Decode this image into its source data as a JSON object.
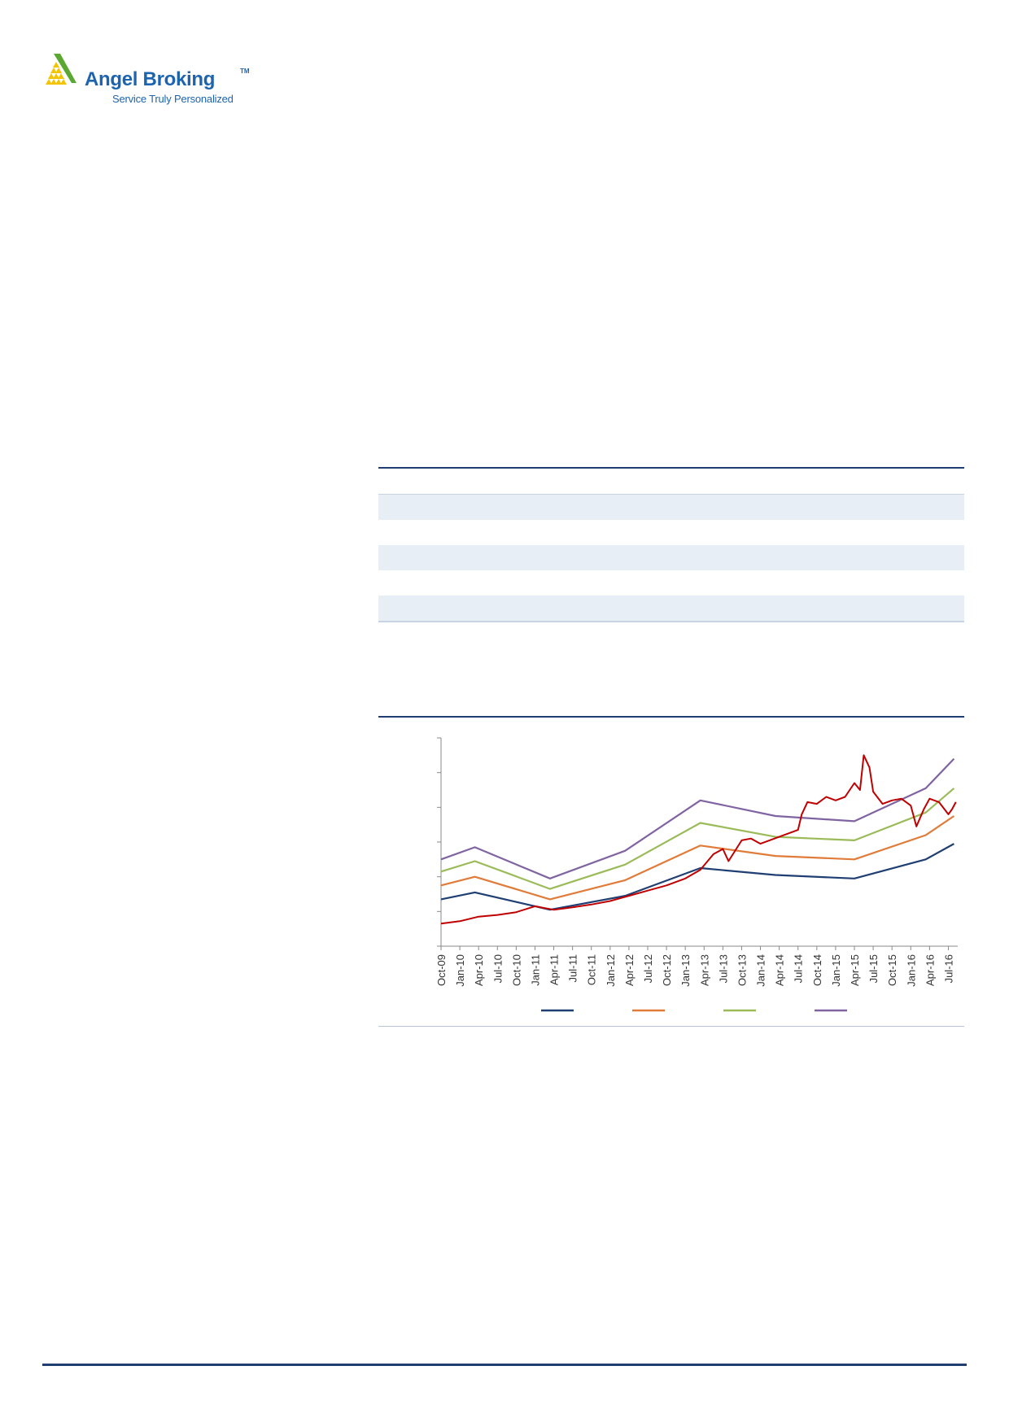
{
  "brand": {
    "name": "Angel Broking",
    "tm": "TM",
    "tagline": "Service Truly Personalized",
    "colors": {
      "primary": "#1c64b0",
      "mark": "#5aa832",
      "accent": "#f5c400"
    }
  },
  "colors": {
    "rule": "#1f3f73",
    "table_shade": "#e8eef6",
    "price": "#c00000",
    "band_1": "#1f3f73",
    "band_2": "#e07b39",
    "band_3": "#9bbb59",
    "band_4": "#8064a2"
  },
  "chart_data": {
    "type": "line",
    "x_tick_labels": [
      "Oct-09",
      "Jan-10",
      "Apr-10",
      "Jul-10",
      "Oct-10",
      "Jan-11",
      "Apr-11",
      "Jul-11",
      "Oct-11",
      "Jan-12",
      "Apr-12",
      "Jul-12",
      "Oct-12",
      "Jan-13",
      "Apr-13",
      "Jul-13",
      "Oct-13",
      "Jan-14",
      "Apr-14",
      "Jul-14",
      "Oct-14",
      "Jan-15",
      "Apr-15",
      "Jul-15",
      "Oct-15",
      "Jan-16",
      "Apr-16",
      "Jul-16"
    ],
    "x_range": [
      0,
      27.5
    ],
    "y_range": [
      0,
      6
    ],
    "y_ticks": 6,
    "grid": false,
    "legend_position": "bottom",
    "series": [
      {
        "key": "band_1",
        "values": [
          [
            0,
            1.35
          ],
          [
            1.8,
            1.55
          ],
          [
            5.8,
            1.05
          ],
          [
            9.8,
            1.45
          ],
          [
            13.8,
            2.25
          ],
          [
            17.8,
            2.05
          ],
          [
            22,
            1.95
          ],
          [
            25.8,
            2.5
          ],
          [
            27.3,
            2.95
          ]
        ]
      },
      {
        "key": "band_2",
        "values": [
          [
            0,
            1.75
          ],
          [
            1.8,
            2.0
          ],
          [
            5.8,
            1.35
          ],
          [
            9.8,
            1.9
          ],
          [
            13.8,
            2.9
          ],
          [
            17.8,
            2.6
          ],
          [
            22,
            2.5
          ],
          [
            25.8,
            3.2
          ],
          [
            27.3,
            3.75
          ]
        ]
      },
      {
        "key": "band_3",
        "values": [
          [
            0,
            2.15
          ],
          [
            1.8,
            2.45
          ],
          [
            5.8,
            1.65
          ],
          [
            9.8,
            2.35
          ],
          [
            13.8,
            3.55
          ],
          [
            17.8,
            3.15
          ],
          [
            22,
            3.05
          ],
          [
            25.8,
            3.85
          ],
          [
            27.3,
            4.55
          ]
        ]
      },
      {
        "key": "band_4",
        "values": [
          [
            0,
            2.5
          ],
          [
            1.8,
            2.85
          ],
          [
            5.8,
            1.95
          ],
          [
            9.8,
            2.75
          ],
          [
            13.8,
            4.2
          ],
          [
            17.8,
            3.75
          ],
          [
            22,
            3.6
          ],
          [
            25.8,
            4.55
          ],
          [
            27.3,
            5.4
          ]
        ]
      },
      {
        "key": "price",
        "values": [
          [
            0,
            0.65
          ],
          [
            1,
            0.72
          ],
          [
            2,
            0.85
          ],
          [
            3,
            0.9
          ],
          [
            4,
            0.98
          ],
          [
            5,
            1.15
          ],
          [
            5.5,
            1.1
          ],
          [
            6,
            1.05
          ],
          [
            7,
            1.12
          ],
          [
            8,
            1.2
          ],
          [
            9,
            1.3
          ],
          [
            10,
            1.45
          ],
          [
            11,
            1.6
          ],
          [
            12,
            1.75
          ],
          [
            13,
            1.95
          ],
          [
            13.8,
            2.2
          ],
          [
            14.5,
            2.65
          ],
          [
            15,
            2.8
          ],
          [
            15.3,
            2.45
          ],
          [
            16,
            3.05
          ],
          [
            16.5,
            3.1
          ],
          [
            17,
            2.95
          ],
          [
            18,
            3.15
          ],
          [
            19,
            3.35
          ],
          [
            19.2,
            3.8
          ],
          [
            19.5,
            4.15
          ],
          [
            20,
            4.1
          ],
          [
            20.5,
            4.3
          ],
          [
            21,
            4.2
          ],
          [
            21.5,
            4.3
          ],
          [
            22,
            4.7
          ],
          [
            22.3,
            4.5
          ],
          [
            22.5,
            5.5
          ],
          [
            22.8,
            5.15
          ],
          [
            23,
            4.45
          ],
          [
            23.5,
            4.1
          ],
          [
            24,
            4.2
          ],
          [
            24.5,
            4.25
          ],
          [
            25,
            4.05
          ],
          [
            25.3,
            3.45
          ],
          [
            25.7,
            3.95
          ],
          [
            26,
            4.25
          ],
          [
            26.5,
            4.15
          ],
          [
            27,
            3.8
          ],
          [
            27.2,
            3.95
          ],
          [
            27.4,
            4.15
          ]
        ]
      }
    ]
  }
}
